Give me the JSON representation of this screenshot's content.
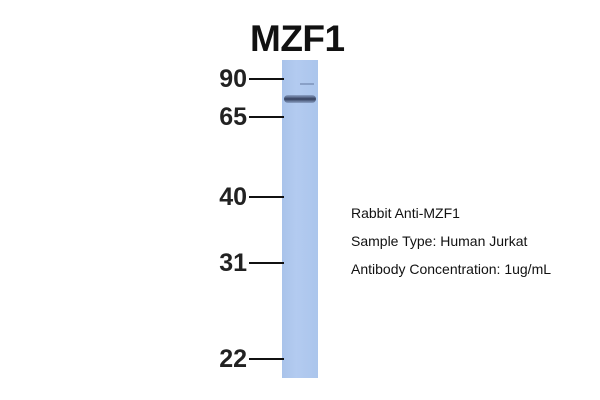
{
  "title": "MZF1",
  "markers": [
    {
      "label": "90"
    },
    {
      "label": "65"
    },
    {
      "label": "40"
    },
    {
      "label": "31"
    },
    {
      "label": "22"
    }
  ],
  "info": {
    "antibody": "Rabbit Anti-MZF1",
    "sample": "Sample Type: Human Jurkat",
    "concentration": "Antibody Concentration: 1ug/mL"
  },
  "colors": {
    "lane": "#b0c8ee",
    "band": "#34405e"
  }
}
